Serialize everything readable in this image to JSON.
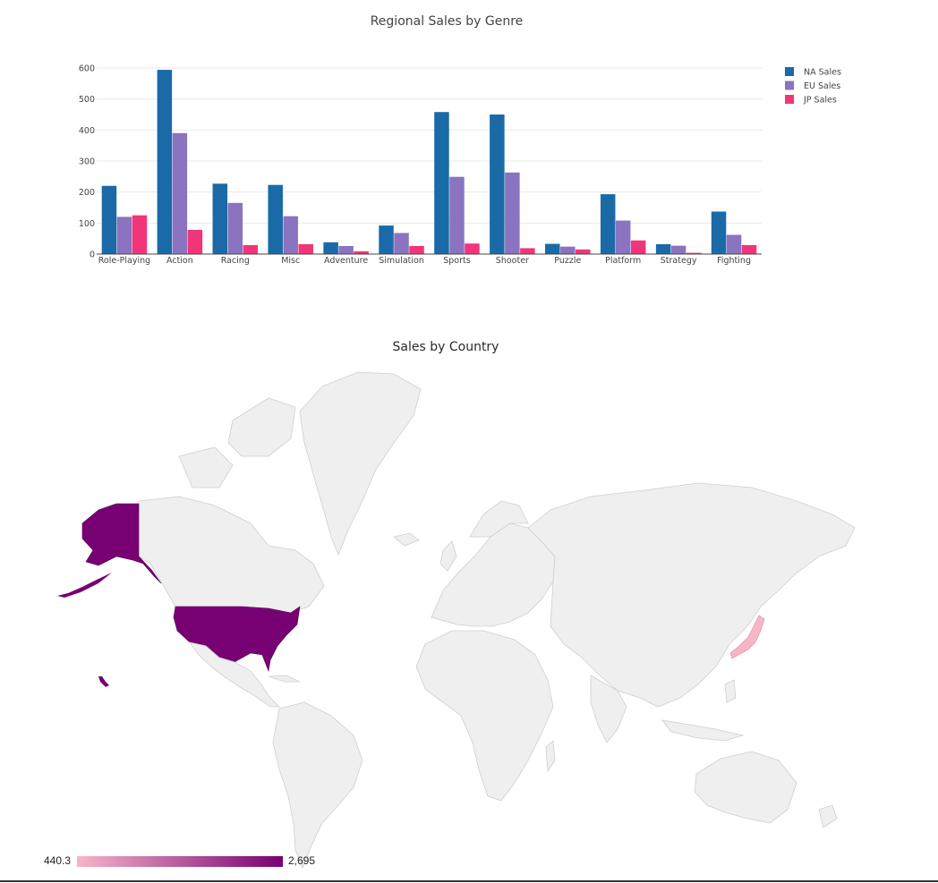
{
  "colors": {
    "na": "#1a6aa8",
    "eu": "#8a73bf",
    "jp": "#f2357a",
    "grid": "#e9e9e9",
    "axis": "#444444",
    "land": "#efefef",
    "scale_low": "#f7b5c8",
    "scale_high": "#770073"
  },
  "chart_data": [
    {
      "type": "bar",
      "title": "Regional Sales by Genre",
      "categories": [
        "Role-Playing",
        "Action",
        "Racing",
        "Misc",
        "Adventure",
        "Simulation",
        "Sports",
        "Shooter",
        "Puzzle",
        "Platform",
        "Strategy",
        "Fighting"
      ],
      "series": [
        {
          "name": "NA Sales",
          "color": "#1a6aa8",
          "values": [
            220,
            594,
            227,
            223,
            38,
            92,
            458,
            450,
            33,
            193,
            32,
            137
          ]
        },
        {
          "name": "EU Sales",
          "color": "#8a73bf",
          "values": [
            120,
            390,
            165,
            122,
            26,
            68,
            249,
            263,
            24,
            108,
            27,
            62
          ]
        },
        {
          "name": "JP Sales",
          "color": "#f2357a",
          "values": [
            125,
            78,
            29,
            32,
            9,
            26,
            34,
            19,
            15,
            44,
            4,
            29
          ]
        }
      ],
      "ylim": [
        0,
        600
      ],
      "yticks": [
        0,
        100,
        200,
        300,
        400,
        500,
        600
      ],
      "grid": true,
      "legend_position": "top-right"
    },
    {
      "type": "choropleth",
      "title": "Sales by Country",
      "countries": [
        {
          "name": "United States",
          "value": 2695,
          "color": "#770073"
        },
        {
          "name": "Japan",
          "value": 440.3,
          "color": "#f7b5c8"
        }
      ],
      "colorscale": {
        "min": 440.3,
        "max": 2695,
        "min_label": "440.3",
        "max_label": "2,695"
      }
    }
  ]
}
